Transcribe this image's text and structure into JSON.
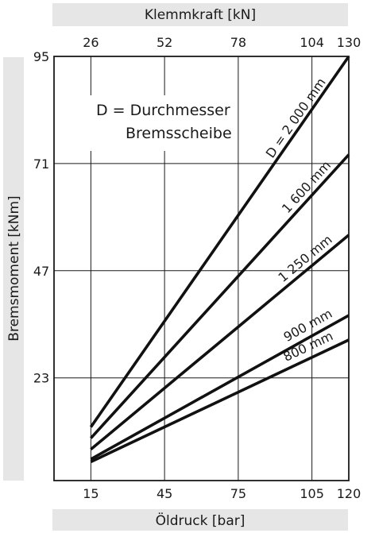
{
  "chart_data": {
    "type": "line",
    "top_axis": {
      "label": "Klemmkraft [kN]",
      "ticks": [
        "26",
        "52",
        "78",
        "104",
        "130"
      ]
    },
    "x_axis": {
      "label": "Öldruck [bar]",
      "ticks": [
        15,
        45,
        75,
        105,
        120
      ],
      "range": [
        0,
        120
      ]
    },
    "y_axis": {
      "label": "Bremsmoment [kNm]",
      "ticks": [
        23,
        47,
        71,
        95
      ],
      "range": [
        0,
        95
      ]
    },
    "grid": true,
    "annotation": [
      "D = Durchmesser",
      "Bremsscheibe"
    ],
    "series": [
      {
        "name": "D = 2 000 mm",
        "x": [
          15,
          120
        ],
        "y": [
          12,
          95
        ]
      },
      {
        "name": "1 600 mm",
        "x": [
          15,
          120
        ],
        "y": [
          9.5,
          73
        ]
      },
      {
        "name": "1 250 mm",
        "x": [
          15,
          120
        ],
        "y": [
          7,
          55
        ]
      },
      {
        "name": "900 mm",
        "x": [
          15,
          120
        ],
        "y": [
          4.8,
          37
        ]
      },
      {
        "name": "800 mm",
        "x": [
          15,
          120
        ],
        "y": [
          4.2,
          31.5
        ]
      }
    ]
  }
}
